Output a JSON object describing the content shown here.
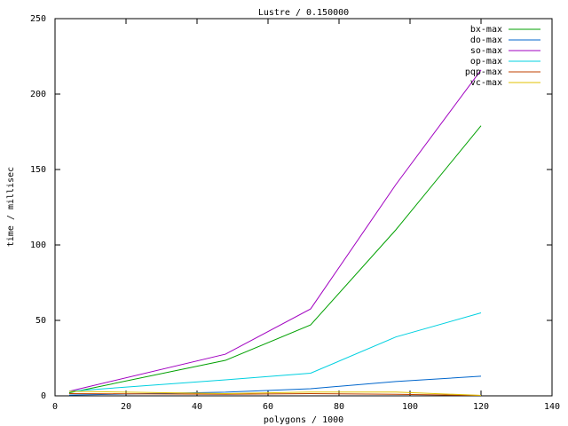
{
  "chart_data": {
    "type": "line",
    "title": "Lustre / 0.150000",
    "x_label": "polygons / 1000",
    "y_label": "time / millisec",
    "x": [
      4,
      48,
      72,
      96,
      120
    ],
    "series": [
      {
        "name": "bx-max",
        "color": "#00a000",
        "values": [
          2,
          23.5,
          47,
          110,
          179
        ]
      },
      {
        "name": "do-max",
        "color": "#0066cc",
        "values": [
          0.5,
          2.4,
          4.7,
          9.5,
          13
        ]
      },
      {
        "name": "so-max",
        "color": "#a000c0",
        "values": [
          3,
          27.6,
          57.6,
          140,
          216
        ]
      },
      {
        "name": "op-max",
        "color": "#00d0e0",
        "values": [
          3,
          10.6,
          15,
          39,
          55
        ]
      },
      {
        "name": "pqp-max",
        "color": "#c04000",
        "values": [
          1.5,
          1,
          1.5,
          1,
          0.3
        ]
      },
      {
        "name": "vc-max",
        "color": "#e0c000",
        "values": [
          3,
          1.5,
          2.5,
          2.5,
          0.3
        ]
      }
    ],
    "xlim": [
      0,
      140
    ],
    "xticks": [
      0,
      20,
      40,
      60,
      80,
      100,
      120,
      140
    ],
    "ylim": [
      0,
      250
    ],
    "yticks": [
      0,
      50,
      100,
      150,
      200,
      250
    ],
    "legend": "top-right"
  }
}
